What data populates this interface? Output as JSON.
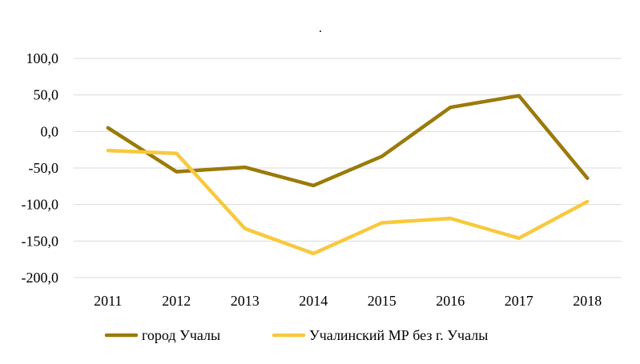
{
  "chart_data": {
    "type": "line",
    "title": ".",
    "xlabel": "",
    "ylabel": "",
    "categories": [
      "2011",
      "2012",
      "2013",
      "2014",
      "2015",
      "2016",
      "2017",
      "2018"
    ],
    "y_ticks": [
      "100,0",
      "50,0",
      "0,0",
      "-50,0",
      "-100,0",
      "-150,0",
      "-200,0"
    ],
    "ylim": [
      -200,
      100
    ],
    "grid": true,
    "legend_position": "bottom",
    "series": [
      {
        "name": "город Учалы",
        "color": "#9a7a0a",
        "values": [
          5,
          -55,
          -49,
          -74,
          -34,
          33,
          49,
          -64
        ]
      },
      {
        "name": "Учалинский МР без г. Учалы",
        "color": "#f8c93e",
        "values": [
          -26,
          -30,
          -133,
          -167,
          -125,
          -119,
          -146,
          -96
        ]
      }
    ]
  }
}
